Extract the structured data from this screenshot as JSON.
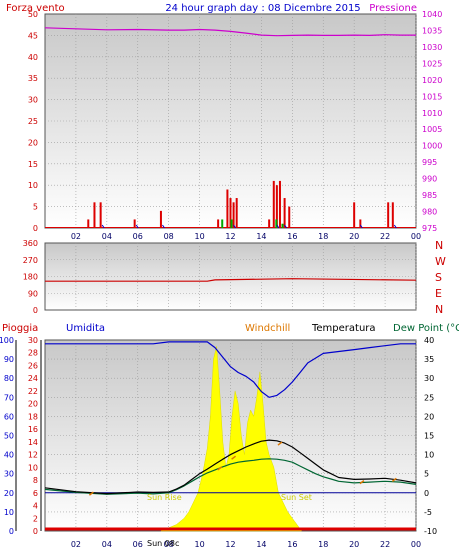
{
  "header": {
    "left": "Forza vento",
    "center": "24 hour graph day : 08 Dicembre 2015",
    "right": "Pressione"
  },
  "bottom_legend": {
    "rain": "Pioggia",
    "humidity": "Umidita",
    "windchill": "Windchill",
    "temperature": "Temperatura",
    "dewpoint": "Dew Point (°C"
  },
  "annotations": {
    "sunrise": "Sun Rise",
    "sunset": "Sun Set",
    "date_marker": "Sun 08c"
  },
  "colors": {
    "wind_gust": "#dd0000",
    "wind_avg": "#00aa00",
    "wind_dir_marker": "#0000cc",
    "pressure": "#cc00cc",
    "direction": "#cc0000",
    "humidity": "#0000cc",
    "temperature": "#000000",
    "dewpoint": "#006633",
    "windchill": "#dd7700",
    "solar": "#ffff00",
    "rain_line": "#dd0000",
    "freezing_line": "#000099",
    "plot_top": "#c8c8c8",
    "plot_bottom": "#ffffff"
  },
  "chart_data": [
    {
      "type": "bar",
      "title": "24 hour graph day : 08 Dicembre 2015",
      "x": [
        "02",
        "04",
        "06",
        "08",
        "10",
        "12",
        "14",
        "16",
        "18",
        "20",
        "22",
        "00"
      ],
      "left_axis_label": "Forza vento",
      "right_axis_label": "Pressione",
      "ylim_left": [
        0,
        50
      ],
      "ylim_right": [
        975,
        1040
      ],
      "yticks_left": [
        0,
        5,
        10,
        15,
        20,
        25,
        30,
        35,
        40,
        45,
        50
      ],
      "yticks_right": [
        975,
        980,
        985,
        990,
        995,
        1000,
        1005,
        1010,
        1015,
        1020,
        1025,
        1030,
        1035,
        1040
      ],
      "gusts": [
        {
          "h": 2.8,
          "v": 2
        },
        {
          "h": 3.2,
          "v": 6
        },
        {
          "h": 3.6,
          "v": 6
        },
        {
          "h": 5.8,
          "v": 2
        },
        {
          "h": 7.5,
          "v": 4
        },
        {
          "h": 11.2,
          "v": 2
        },
        {
          "h": 11.8,
          "v": 9
        },
        {
          "h": 12.0,
          "v": 7
        },
        {
          "h": 12.2,
          "v": 6
        },
        {
          "h": 12.4,
          "v": 7
        },
        {
          "h": 14.5,
          "v": 2
        },
        {
          "h": 14.8,
          "v": 11
        },
        {
          "h": 15.0,
          "v": 10
        },
        {
          "h": 15.2,
          "v": 11
        },
        {
          "h": 15.5,
          "v": 7
        },
        {
          "h": 15.8,
          "v": 5
        },
        {
          "h": 20.0,
          "v": 6
        },
        {
          "h": 20.4,
          "v": 2
        },
        {
          "h": 22.2,
          "v": 6
        },
        {
          "h": 22.5,
          "v": 6
        }
      ],
      "averages": [
        {
          "h": 11.4,
          "v": 2
        },
        {
          "h": 12.0,
          "v": 2
        },
        {
          "h": 14.9,
          "v": 2
        },
        {
          "h": 15.3,
          "v": 1
        }
      ],
      "dir_markers": [
        3.7,
        5.9,
        7.6,
        12.2,
        15.0,
        15.5,
        20.4,
        22.6
      ],
      "pressure": {
        "h": [
          0,
          2,
          4,
          6,
          8,
          9,
          10,
          11,
          12,
          13,
          14,
          15,
          16,
          17,
          18,
          19,
          20,
          21,
          22,
          23,
          24
        ],
        "v": [
          1035.8,
          1035.5,
          1035.2,
          1035.3,
          1035.1,
          1035.1,
          1035.3,
          1035.1,
          1034.7,
          1034.2,
          1033.6,
          1033.4,
          1033.5,
          1033.6,
          1033.5,
          1033.5,
          1033.6,
          1033.5,
          1033.7,
          1033.6,
          1033.6
        ]
      }
    },
    {
      "type": "line",
      "right_labels": [
        "N",
        "W",
        "S",
        "E",
        "N"
      ],
      "ylim": [
        0,
        360
      ],
      "yticks": [
        0,
        90,
        180,
        270,
        360
      ],
      "direction": {
        "h": [
          0,
          8,
          10.5,
          11,
          16,
          24
        ],
        "v": [
          155,
          155,
          155,
          162,
          168,
          160
        ]
      }
    },
    {
      "type": "line",
      "left_axis_label": "Pioggia",
      "humidity_axis_label": "Umidita",
      "right_axis_label": "Dew Point (°C",
      "yticks_humidity": [
        0,
        10,
        20,
        30,
        40,
        50,
        60,
        70,
        80,
        90,
        100
      ],
      "yticks_rain": [
        0,
        2,
        4,
        6,
        8,
        10,
        12,
        14,
        16,
        18,
        20,
        22,
        24,
        26,
        28,
        30
      ],
      "yticks_temp": [
        -10,
        -5,
        0,
        5,
        10,
        15,
        20,
        25,
        30,
        35,
        40
      ],
      "ylim_temp": [
        -10,
        40
      ],
      "humidity": {
        "h": [
          0,
          3,
          5,
          7,
          8,
          9,
          10,
          10.5,
          11,
          11.5,
          12,
          12.5,
          13,
          13.5,
          14,
          14.5,
          15,
          15.5,
          16,
          16.5,
          17,
          18,
          19,
          20,
          21,
          22,
          23,
          24
        ],
        "v": [
          98,
          98,
          98,
          98,
          99,
          99,
          99,
          99,
          96,
          91,
          86,
          83,
          81,
          78,
          73,
          70,
          71,
          74,
          78,
          83,
          88,
          93,
          94,
          95,
          96,
          97,
          98,
          98
        ]
      },
      "temperature": {
        "h": [
          0,
          2,
          4,
          6,
          7,
          8,
          8.5,
          9,
          9.5,
          10,
          10.5,
          11,
          11.5,
          12,
          12.5,
          13,
          13.5,
          14,
          14.5,
          15,
          15.5,
          16,
          16.5,
          17,
          17.5,
          18,
          18.5,
          19,
          20,
          21,
          22,
          23,
          24
        ],
        "v": [
          1.3,
          0.3,
          -0.2,
          0.2,
          0.1,
          0.2,
          1.0,
          2.0,
          3.5,
          5.0,
          6.2,
          7.5,
          8.8,
          10.0,
          11.0,
          12.0,
          12.8,
          13.5,
          13.8,
          13.6,
          13.0,
          12.0,
          10.5,
          9.0,
          7.5,
          6.0,
          5.0,
          4.0,
          3.5,
          3.6,
          3.8,
          3.3,
          2.6
        ]
      },
      "dewpoint": {
        "h": [
          0,
          2,
          4,
          6,
          7,
          8,
          8.5,
          9,
          9.5,
          10,
          10.5,
          11,
          11.5,
          12,
          12.5,
          13,
          13.5,
          14,
          14.5,
          15,
          15.5,
          16,
          16.5,
          17,
          17.5,
          18,
          18.5,
          19,
          20,
          21,
          22,
          23,
          24
        ],
        "v": [
          0.9,
          0.1,
          -0.4,
          -0.1,
          -0.3,
          0.0,
          0.8,
          1.8,
          3.0,
          4.2,
          5.2,
          6.0,
          6.8,
          7.5,
          8.0,
          8.3,
          8.5,
          8.8,
          8.9,
          8.8,
          8.5,
          8.0,
          7.0,
          6.0,
          5.0,
          4.2,
          3.6,
          3.0,
          2.6,
          2.8,
          3.0,
          2.8,
          2.2
        ]
      },
      "windchill_marks": [
        {
          "h": 3.0,
          "v": -0.6
        },
        {
          "h": 11.3,
          "v": 6.0
        },
        {
          "h": 12.2,
          "v": 8.8
        },
        {
          "h": 15.2,
          "v": 12.5
        },
        {
          "h": 20.5,
          "v": 2.4
        },
        {
          "h": 22.6,
          "v": 3.0
        }
      ],
      "solar": {
        "h": [
          7.5,
          8.0,
          8.5,
          9.0,
          9.3,
          9.6,
          9.9,
          10.2,
          10.5,
          10.7,
          10.9,
          11.1,
          11.3,
          11.5,
          11.7,
          11.9,
          12.1,
          12.3,
          12.5,
          12.7,
          12.9,
          13.1,
          13.3,
          13.5,
          13.7,
          13.9,
          14.1,
          14.3,
          14.5,
          14.8,
          15.1,
          15.4,
          15.7,
          16.0,
          16.3,
          16.6
        ],
        "v": [
          0,
          0.5,
          1.0,
          2.0,
          3.0,
          4.5,
          6.0,
          9.0,
          13.0,
          18.0,
          27.0,
          29.0,
          22.0,
          14.0,
          10.0,
          12.0,
          18.0,
          22.0,
          20.0,
          15.0,
          12.0,
          17.0,
          19.0,
          18.0,
          21.0,
          25.0,
          20.0,
          14.0,
          12.0,
          10.0,
          6.0,
          4.5,
          3.0,
          2.0,
          1.0,
          0
        ]
      }
    }
  ]
}
